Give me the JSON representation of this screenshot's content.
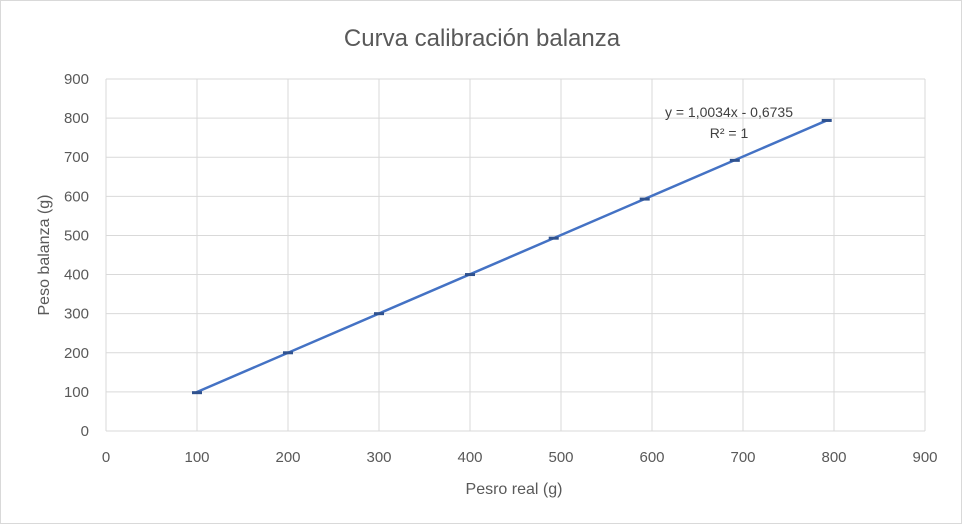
{
  "chart_data": {
    "type": "scatter",
    "title": "Curva calibración balanza",
    "xlabel": "Pesro real (g)",
    "ylabel": "Peso balanza (g)",
    "xlim": [
      0,
      900
    ],
    "ylim": [
      0,
      900
    ],
    "xticks": [
      0,
      100,
      200,
      300,
      400,
      500,
      600,
      700,
      800,
      900
    ],
    "yticks": [
      0,
      100,
      200,
      300,
      400,
      500,
      600,
      700,
      800,
      900
    ],
    "grid": true,
    "legend": "none",
    "series": [
      {
        "x": [
          100,
          200,
          300,
          400,
          492,
          592,
          691,
          792
        ],
        "y": [
          98,
          200,
          300,
          400,
          493,
          593,
          692,
          794
        ],
        "color": "#4472c4"
      }
    ],
    "trendline": {
      "equation": "y = 1,0034x - 0,6735",
      "r2": "R² = 1",
      "slope": 1.0034,
      "intercept": -0.6735,
      "color": "#4472c4"
    }
  }
}
